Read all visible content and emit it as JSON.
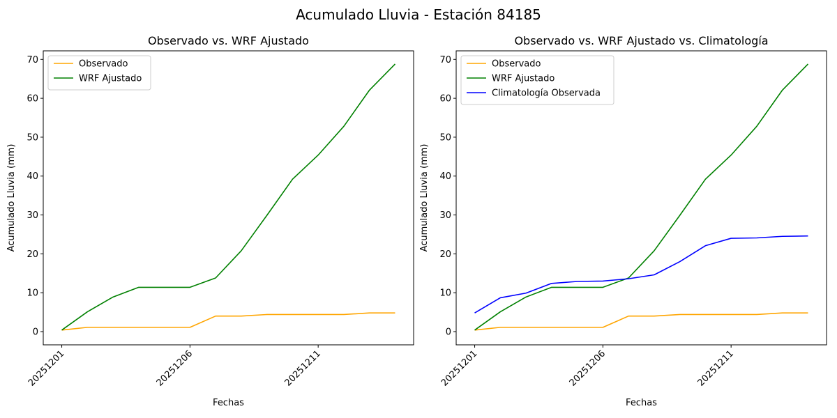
{
  "figure": {
    "suptitle": "Acumulado Lluvia - Estación 84185"
  },
  "chart_data": [
    {
      "type": "line",
      "title": "Observado vs. WRF Ajustado",
      "xlabel": "Fechas",
      "ylabel": "Acumulado Lluvia (mm)",
      "x": [
        "20251201",
        "20251202",
        "20251203",
        "20251204",
        "20251205",
        "20251206",
        "20251207",
        "20251208",
        "20251209",
        "20251210",
        "20251211",
        "20251212",
        "20251213",
        "20251214"
      ],
      "xticks": [
        "20251201",
        "20251206",
        "20251211"
      ],
      "yticks": [
        0,
        10,
        20,
        30,
        40,
        50,
        60,
        70
      ],
      "ylim": [
        -3.4,
        72.2
      ],
      "legend": "top-left",
      "grid": false,
      "series": [
        {
          "name": "Observado",
          "color": "#ffa500",
          "values": [
            0.4,
            1.1,
            1.1,
            1.1,
            1.1,
            1.1,
            4.0,
            4.0,
            4.4,
            4.4,
            4.4,
            4.4,
            4.8,
            4.8
          ]
        },
        {
          "name": "WRF Ajustado",
          "color": "#008000",
          "values": [
            0.4,
            5.1,
            8.9,
            11.4,
            11.4,
            11.4,
            13.8,
            20.8,
            29.9,
            39.2,
            45.4,
            52.8,
            62.1,
            68.8
          ]
        }
      ]
    },
    {
      "type": "line",
      "title": "Observado vs. WRF Ajustado vs. Climatología",
      "xlabel": "Fechas",
      "ylabel": "Acumulado Lluvia (mm)",
      "x": [
        "20251201",
        "20251202",
        "20251203",
        "20251204",
        "20251205",
        "20251206",
        "20251207",
        "20251208",
        "20251209",
        "20251210",
        "20251211",
        "20251212",
        "20251213",
        "20251214"
      ],
      "xticks": [
        "20251201",
        "20251206",
        "20251211"
      ],
      "yticks": [
        0,
        10,
        20,
        30,
        40,
        50,
        60,
        70
      ],
      "ylim": [
        -3.4,
        72.2
      ],
      "legend": "top-left",
      "grid": false,
      "series": [
        {
          "name": "Observado",
          "color": "#ffa500",
          "values": [
            0.4,
            1.1,
            1.1,
            1.1,
            1.1,
            1.1,
            4.0,
            4.0,
            4.4,
            4.4,
            4.4,
            4.4,
            4.8,
            4.8
          ]
        },
        {
          "name": "WRF Ajustado",
          "color": "#008000",
          "values": [
            0.4,
            5.1,
            8.9,
            11.4,
            11.4,
            11.4,
            13.8,
            20.8,
            29.9,
            39.2,
            45.4,
            52.8,
            62.1,
            68.8
          ]
        },
        {
          "name": "Climatología Observada",
          "color": "#0000ff",
          "values": [
            4.8,
            8.7,
            9.9,
            12.4,
            12.9,
            13.0,
            13.6,
            14.6,
            18.0,
            22.1,
            24.0,
            24.1,
            24.5,
            24.6
          ]
        }
      ]
    }
  ]
}
